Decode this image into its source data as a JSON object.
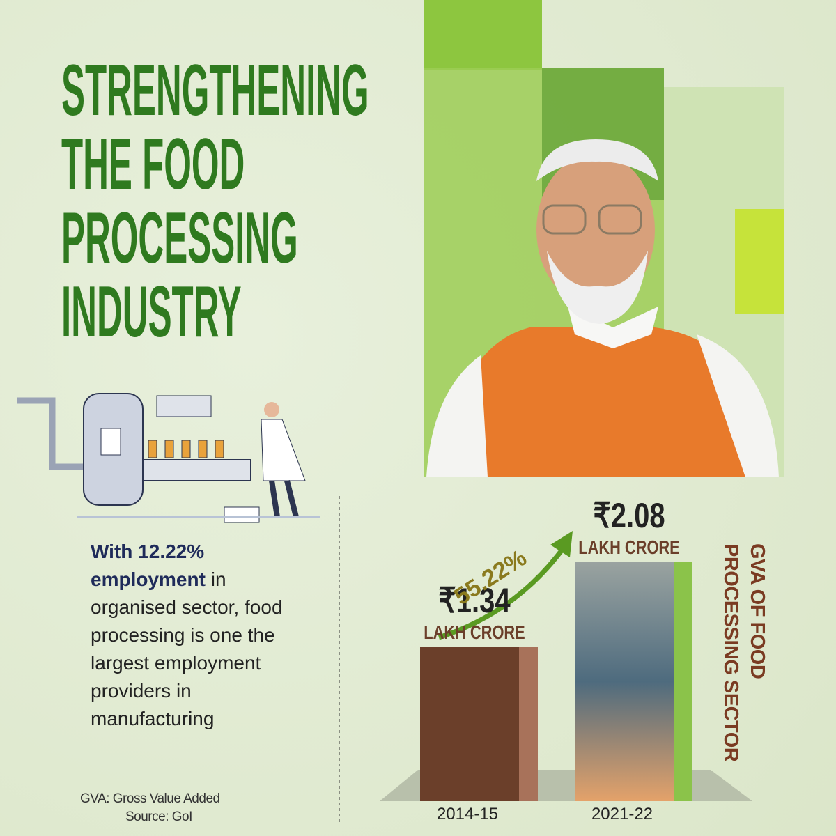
{
  "title_lines": [
    "STRENGTHENING",
    "THE FOOD",
    "PROCESSING",
    "INDUSTRY"
  ],
  "body": {
    "bold": "With 12.22% employment",
    "text": "in organised sector, food processing is one the largest employment providers in manufacturing"
  },
  "notes": [
    "GVA: Gross Value Added",
    "Source: GoI"
  ],
  "chart_data": {
    "type": "bar",
    "axis_title": "GVA OF FOOD PROCESSING SECTOR",
    "categories": [
      "2014-15",
      "2021-22"
    ],
    "values": [
      1.34,
      2.08
    ],
    "value_labels": [
      "₹1.34",
      "₹2.08"
    ],
    "value_units": [
      "LAKH CRORE",
      "LAKH CRORE"
    ],
    "growth_label": "55.22%",
    "colors": [
      "#6b3f2a",
      "#8bc34a"
    ]
  }
}
